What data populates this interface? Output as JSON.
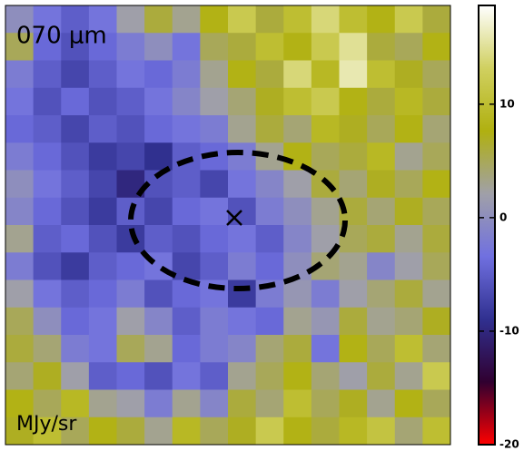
{
  "chart_data": {
    "type": "heatmap",
    "title": "070 μm",
    "units": "MJy/sr",
    "clim": [
      -20,
      18.7
    ],
    "cticks": [
      10,
      0,
      -10,
      -20
    ],
    "colormap": [
      "#ff0000",
      "#300030",
      "#303090",
      "#7070e0",
      "#a0a0a8",
      "#b0b010",
      "#d0d060",
      "#ffffff"
    ],
    "values": [
      [
        0,
        -3,
        -5,
        -3,
        2,
        6,
        3,
        8,
        12,
        6,
        10,
        14,
        10,
        8,
        12,
        6
      ],
      [
        5,
        -4,
        -6,
        -4,
        -2,
        0,
        -3,
        5,
        6,
        10,
        8,
        12,
        15,
        6,
        5,
        8
      ],
      [
        -2,
        -5,
        -7,
        -5,
        -3,
        -4,
        -2,
        3,
        8,
        6,
        14,
        9,
        16,
        10,
        7,
        5
      ],
      [
        -3,
        -6,
        -4,
        -6,
        -5,
        -3,
        -1,
        2,
        4,
        7,
        10,
        12,
        8,
        6,
        9,
        6
      ],
      [
        -4,
        -5,
        -7,
        -5,
        -6,
        -4,
        -3,
        -2,
        3,
        6,
        4,
        9,
        7,
        5,
        8,
        4
      ],
      [
        -2,
        -4,
        -6,
        -8,
        -7,
        -9,
        -5,
        -4,
        -2,
        3,
        8,
        5,
        6,
        9,
        3,
        5
      ],
      [
        0,
        -3,
        -5,
        -7,
        -10,
        -6,
        -5,
        -7,
        -3,
        -1,
        2,
        6,
        4,
        7,
        5,
        8
      ],
      [
        -1,
        -4,
        -6,
        -8,
        -5,
        -7,
        -4,
        -3,
        -6,
        -2,
        0,
        3,
        6,
        4,
        7,
        5
      ],
      [
        3,
        -5,
        -4,
        -6,
        -8,
        -5,
        -6,
        -4,
        -3,
        -5,
        -1,
        2,
        5,
        6,
        3,
        6
      ],
      [
        -2,
        -6,
        -8,
        -5,
        -4,
        -3,
        -7,
        -5,
        -2,
        -4,
        0,
        4,
        3,
        -1,
        2,
        5
      ],
      [
        2,
        -3,
        -5,
        -4,
        -2,
        -6,
        -4,
        -3,
        -8,
        -2,
        1,
        -2,
        2,
        4,
        6,
        3
      ],
      [
        5,
        0,
        -4,
        -3,
        2,
        -1,
        -5,
        -2,
        -3,
        -4,
        3,
        1,
        6,
        3,
        4,
        7
      ],
      [
        6,
        4,
        -2,
        -3,
        5,
        3,
        -4,
        -2,
        -1,
        4,
        6,
        -3,
        8,
        5,
        10,
        4
      ],
      [
        4,
        7,
        2,
        -5,
        -4,
        -6,
        -3,
        -5,
        3,
        5,
        8,
        4,
        2,
        6,
        3,
        12
      ],
      [
        8,
        5,
        9,
        3,
        2,
        -2,
        3,
        -1,
        6,
        4,
        10,
        5,
        7,
        3,
        8,
        5
      ],
      [
        7,
        10,
        5,
        8,
        6,
        3,
        9,
        5,
        7,
        12,
        8,
        6,
        9,
        11,
        4,
        10
      ]
    ]
  }
}
